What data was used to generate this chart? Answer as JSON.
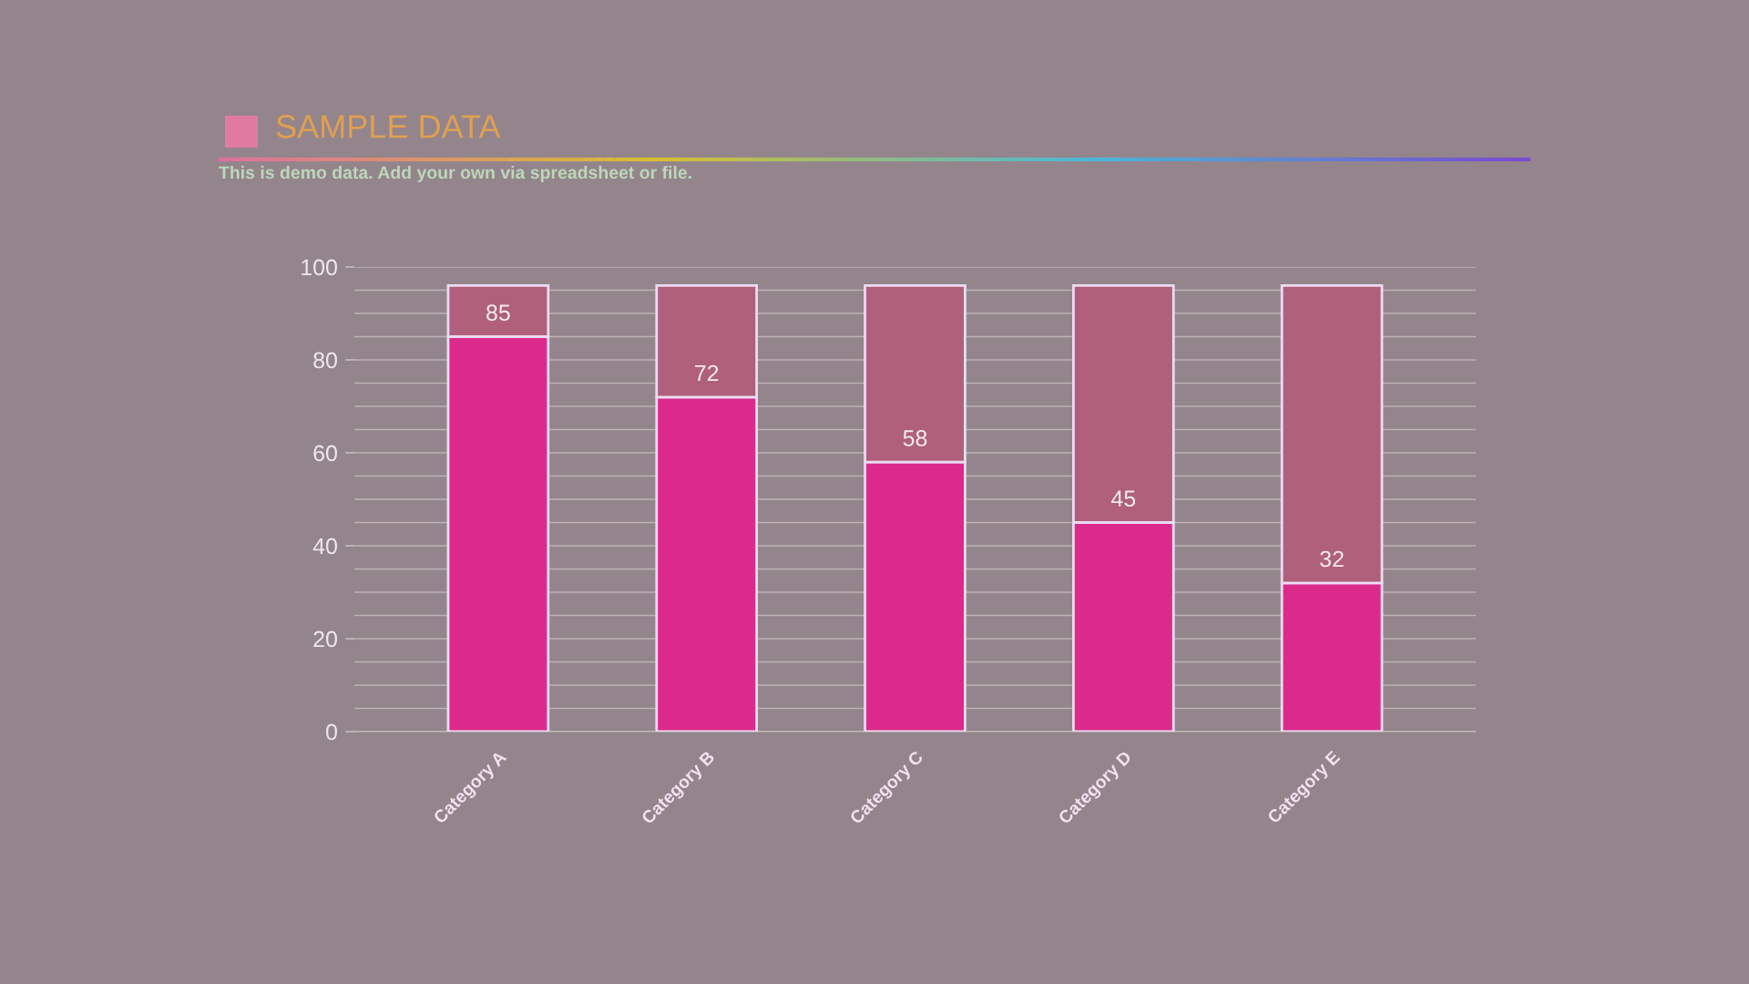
{
  "chart_data": {
    "type": "bar",
    "title": "SAMPLE DATA",
    "subtitle": "This is demo data. Add your own via spreadsheet or file.",
    "categories": [
      "Category A",
      "Category B",
      "Category C",
      "Category D",
      "Category E"
    ],
    "stacked": true,
    "series": [
      {
        "color": "#dc2a8c",
        "values": [
          85,
          72,
          58,
          45,
          32
        ],
        "value_labels": [
          "85",
          "72",
          "58",
          "45",
          "32"
        ]
      },
      {
        "color": "#b0607a",
        "values": [
          11,
          24,
          38,
          51,
          64
        ]
      }
    ],
    "ylim": [
      0,
      100
    ],
    "yticks": [
      0,
      {
        "value": 5,
        "label": null
      },
      {
        "value": 10,
        "label": null
      },
      {
        "value": 15,
        "label": null
      },
      20,
      {
        "value": 25,
        "label": null
      },
      {
        "value": 30,
        "label": null
      },
      {
        "value": 35,
        "label": null
      },
      40,
      {
        "value": 45,
        "label": null
      },
      {
        "value": 50,
        "label": null
      },
      {
        "value": 55,
        "label": null
      },
      60,
      {
        "value": 65,
        "label": null
      },
      {
        "value": 70,
        "label": null
      },
      {
        "value": 75,
        "label": null
      },
      80,
      {
        "value": 85,
        "label": null
      },
      {
        "value": 90,
        "label": null
      },
      {
        "value": 95,
        "label": null
      },
      100
    ],
    "grid": "y"
  }
}
